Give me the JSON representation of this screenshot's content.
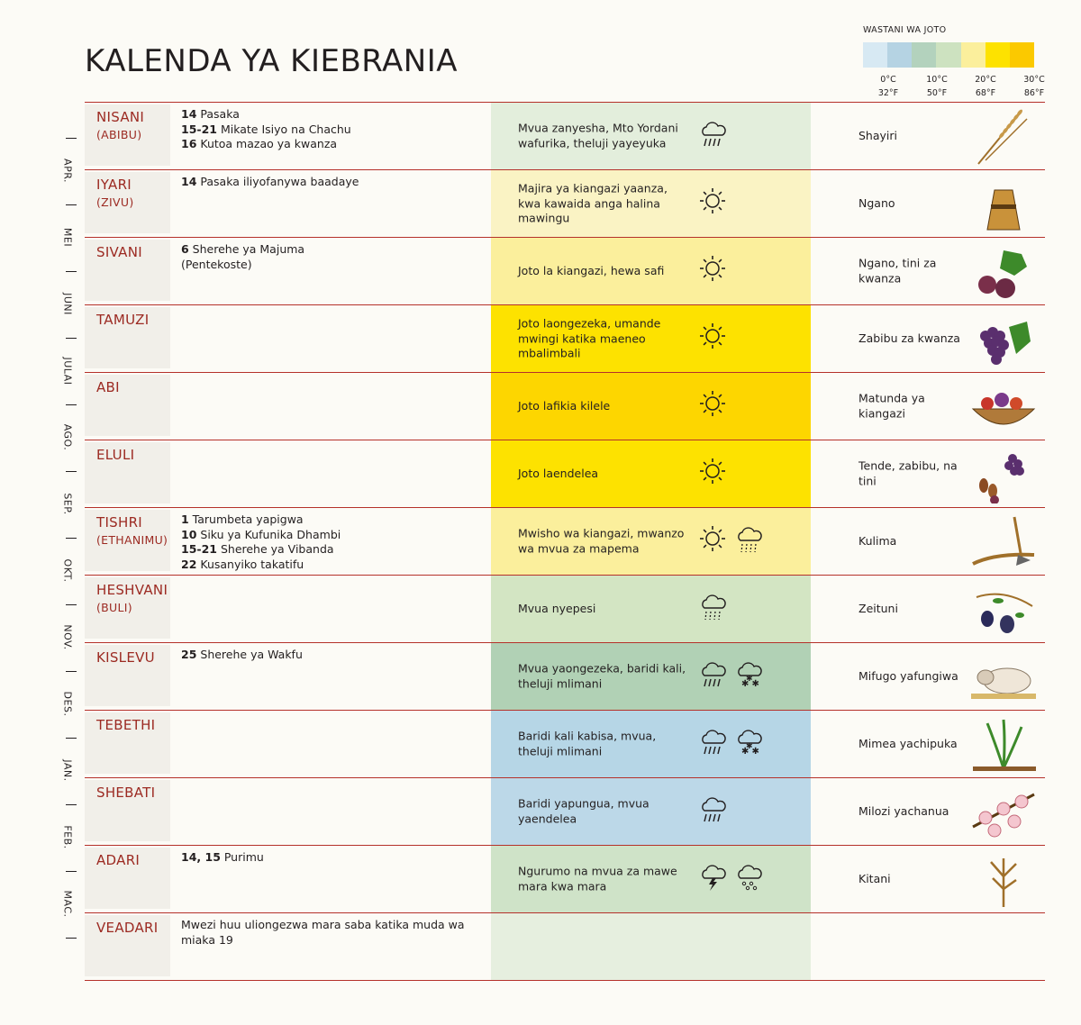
{
  "title": "KALENDA YA KIEBRANIA",
  "legend": {
    "title": "WASTANI WA JOTO",
    "colors": [
      "#d7e9f3",
      "#b5d3e3",
      "#b3d2bd",
      "#cde2c0",
      "#fbef9c",
      "#fde200",
      "#fbc900"
    ],
    "labels": [
      {
        "c": "0°C",
        "f": "32°F"
      },
      {
        "c": "10°C",
        "f": "50°F"
      },
      {
        "c": "20°C",
        "f": "68°F"
      },
      {
        "c": "30°C",
        "f": "86°F"
      }
    ]
  },
  "gregorian_months": [
    "APR.",
    "MEI",
    "JUNI",
    "JULAI",
    "AGO.",
    "SEP.",
    "OKT.",
    "NOV.",
    "DES.",
    "JAN.",
    "FEB.",
    "MAC."
  ],
  "months": [
    {
      "name": "NISANI",
      "alt": "(ABIBU)",
      "events": [
        {
          "day": "14",
          "text": " Pasaka"
        },
        {
          "day": "15-21",
          "text": " Mikate Isiyo na Chachu"
        },
        {
          "day": "16",
          "text": " Kutoa mazao ya kwanza"
        }
      ],
      "weather": "Mvua zanyesha, Mto Yordani wafurika, theluji yayeyuka",
      "weather_icons": [
        "rain-cloud-icon"
      ],
      "weather_color": "#e3eedc",
      "crop": "Shayiri",
      "crop_icon": "barley-icon"
    },
    {
      "name": "IYARI",
      "alt": "(ZIVU)",
      "events": [
        {
          "day": "14",
          "text": " Pasaka iliyofanywa baadaye"
        }
      ],
      "weather": "Majira ya kiangazi yaanza, kwa kawaida anga halina mawingu",
      "weather_icons": [
        "sun-icon"
      ],
      "weather_color": "#faf3c4",
      "crop": "Ngano",
      "crop_icon": "wheat-sheaf-icon"
    },
    {
      "name": "SIVANI",
      "alt": "",
      "events": [
        {
          "day": "6",
          "text": " Sherehe ya Majuma"
        },
        {
          "day": "",
          "text": "(Pentekoste)"
        }
      ],
      "weather": "Joto la kiangazi, hewa safi",
      "weather_icons": [
        "sun-icon"
      ],
      "weather_color": "#fbef9c",
      "crop": "Ngano, tini za kwanza",
      "crop_icon": "fig-icon"
    },
    {
      "name": "TAMUZI",
      "alt": "",
      "events": [],
      "weather": "Joto laongezeka, umande mwingi katika maeneo mbalimbali",
      "weather_icons": [
        "sun-icon"
      ],
      "weather_color": "#fde200",
      "crop": "Zabibu za kwanza",
      "crop_icon": "grapes-icon"
    },
    {
      "name": "ABI",
      "alt": "",
      "events": [],
      "weather": "Joto lafikia kilele",
      "weather_icons": [
        "sun-icon"
      ],
      "weather_color": "#fdd600",
      "crop": "Matunda ya kiangazi",
      "crop_icon": "fruit-basket-icon"
    },
    {
      "name": "ELULI",
      "alt": "",
      "events": [],
      "weather": "Joto laendelea",
      "weather_icons": [
        "sun-icon"
      ],
      "weather_color": "#fde200",
      "crop": "Tende, zabibu, na tini",
      "crop_icon": "dates-grapes-icon"
    },
    {
      "name": "TISHRI",
      "alt": "(ETHANIMU)",
      "events": [
        {
          "day": "1",
          "text": " Tarumbeta yapigwa"
        },
        {
          "day": "10",
          "text": " Siku ya Kufunika Dhambi"
        },
        {
          "day": "15-21",
          "text": " Sherehe ya Vibanda"
        },
        {
          "day": "22",
          "text": " Kusanyiko takatifu"
        }
      ],
      "weather": "Mwisho wa kiangazi, mwanzo wa mvua za mapema",
      "weather_icons": [
        "sun-icon",
        "drizzle-cloud-icon"
      ],
      "weather_color": "#fbef9c",
      "crop": "Kulima",
      "crop_icon": "plow-icon"
    },
    {
      "name": "HESHVANI",
      "alt": "(BULI)",
      "events": [],
      "weather": "Mvua nyepesi",
      "weather_icons": [
        "drizzle-cloud-icon"
      ],
      "weather_color": "#d3e5c3",
      "crop": "Zeituni",
      "crop_icon": "olive-icon"
    },
    {
      "name": "KISLEVU",
      "alt": "",
      "events": [
        {
          "day": "25",
          "text": " Sherehe ya Wakfu"
        }
      ],
      "weather": "Mvua yaongezeka, baridi kali, theluji mlimani",
      "weather_icons": [
        "rain-cloud-icon",
        "snow-cloud-icon"
      ],
      "weather_color": "#b1d1b5",
      "crop": "Mifugo yafungiwa",
      "crop_icon": "sheep-icon"
    },
    {
      "name": "TEBETHI",
      "alt": "",
      "events": [],
      "weather": "Baridi kali kabisa, mvua, theluji mlimani",
      "weather_icons": [
        "rain-cloud-icon",
        "snow-cloud-icon"
      ],
      "weather_color": "#b6d6e6",
      "crop": "Mimea yachipuka",
      "crop_icon": "sprout-icon"
    },
    {
      "name": "SHEBATI",
      "alt": "",
      "events": [],
      "weather": "Baridi yapungua, mvua yaendelea",
      "weather_icons": [
        "rain-cloud-icon"
      ],
      "weather_color": "#bcd8e8",
      "crop": "Milozi yachanua",
      "crop_icon": "almond-blossom-icon"
    },
    {
      "name": "ADARI",
      "alt": "",
      "events": [
        {
          "day": "14, 15",
          "text": " Purimu"
        }
      ],
      "weather": "Ngurumo na mvua za mawe mara kwa mara",
      "weather_icons": [
        "thunder-cloud-icon",
        "hail-cloud-icon"
      ],
      "weather_color": "#cfe3c8",
      "crop": "Kitani",
      "crop_icon": "flax-icon"
    },
    {
      "name": "VEADARI",
      "alt": "",
      "events": [
        {
          "day": "",
          "text": "Mwezi huu uliongezwa mara saba katika muda wa miaka 19"
        }
      ],
      "weather": "",
      "weather_icons": [],
      "weather_color": "#e6efdf",
      "crop": "",
      "crop_icon": ""
    }
  ]
}
